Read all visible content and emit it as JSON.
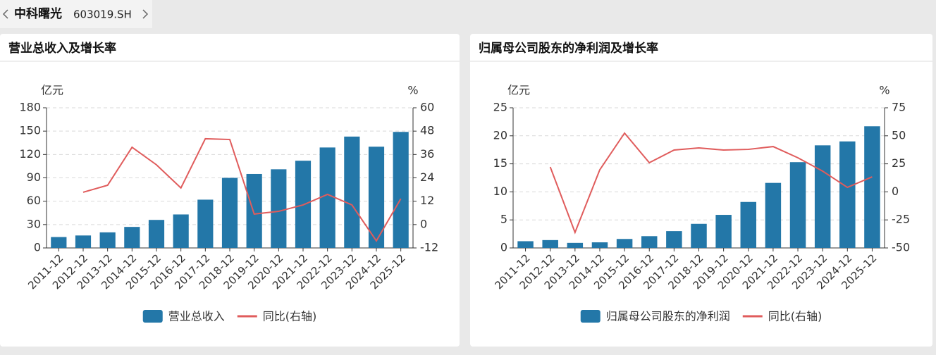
{
  "header": {
    "name": "中科曙光",
    "code": "603019.SH"
  },
  "chart_data": [
    {
      "type": "bar",
      "title": "营业总收入及增长率",
      "y_label": "亿元",
      "y2_label": "%",
      "categories": [
        "2011-12",
        "2012-12",
        "2013-12",
        "2014-12",
        "2015-12",
        "2016-12",
        "2017-12",
        "2018-12",
        "2019-12",
        "2020-12",
        "2021-12",
        "2022-12",
        "2023-12",
        "2024-12",
        "2025-12"
      ],
      "series": [
        {
          "name": "营业总收入",
          "type": "bar",
          "color": "#2377a8",
          "values": [
            14,
            16,
            20,
            27,
            36,
            43,
            62,
            90,
            95,
            101,
            112,
            129,
            143,
            130,
            149
          ]
        },
        {
          "name": "同比(右轴)",
          "type": "line",
          "axis": "y2",
          "color": "#e05c5c",
          "values": [
            null,
            16.6,
            20.2,
            39.7,
            30.7,
            18.8,
            44.1,
            43.7,
            5.4,
            6.8,
            10.1,
            15.5,
            10.1,
            -8.4,
            13.3
          ]
        }
      ],
      "ylim": [
        0,
        180
      ],
      "yticks": [
        0,
        30,
        60,
        90,
        120,
        150,
        180
      ],
      "y2lim": [
        -12,
        60
      ],
      "y2ticks": [
        -12,
        0,
        12,
        24,
        36,
        48,
        60
      ],
      "grid": true
    },
    {
      "type": "bar",
      "title": "归属母公司股东的净利润及增长率",
      "y_label": "亿元",
      "y2_label": "%",
      "categories": [
        "2011-12",
        "2012-12",
        "2013-12",
        "2014-12",
        "2015-12",
        "2016-12",
        "2017-12",
        "2018-12",
        "2019-12",
        "2020-12",
        "2021-12",
        "2022-12",
        "2023-12",
        "2024-12",
        "2025-12"
      ],
      "series": [
        {
          "name": "归属母公司股东的净利润",
          "type": "bar",
          "color": "#2377a8",
          "values": [
            1.2,
            1.4,
            0.9,
            1.0,
            1.6,
            2.1,
            3.0,
            4.3,
            5.9,
            8.2,
            11.6,
            15.3,
            18.3,
            19.0,
            21.7
          ]
        },
        {
          "name": "同比(右轴)",
          "type": "line",
          "axis": "y2",
          "color": "#e05c5c",
          "values": [
            null,
            22.2,
            -36.2,
            19.7,
            52.4,
            26.0,
            37.3,
            39.2,
            37.3,
            37.9,
            40.4,
            30.4,
            18.5,
            4.0,
            13.4
          ]
        }
      ],
      "ylim": [
        0,
        25
      ],
      "yticks": [
        0,
        5,
        10,
        15,
        20,
        25
      ],
      "y2lim": [
        -50,
        75
      ],
      "y2ticks": [
        -50,
        -25,
        0,
        25,
        50,
        75
      ],
      "grid": true
    }
  ]
}
